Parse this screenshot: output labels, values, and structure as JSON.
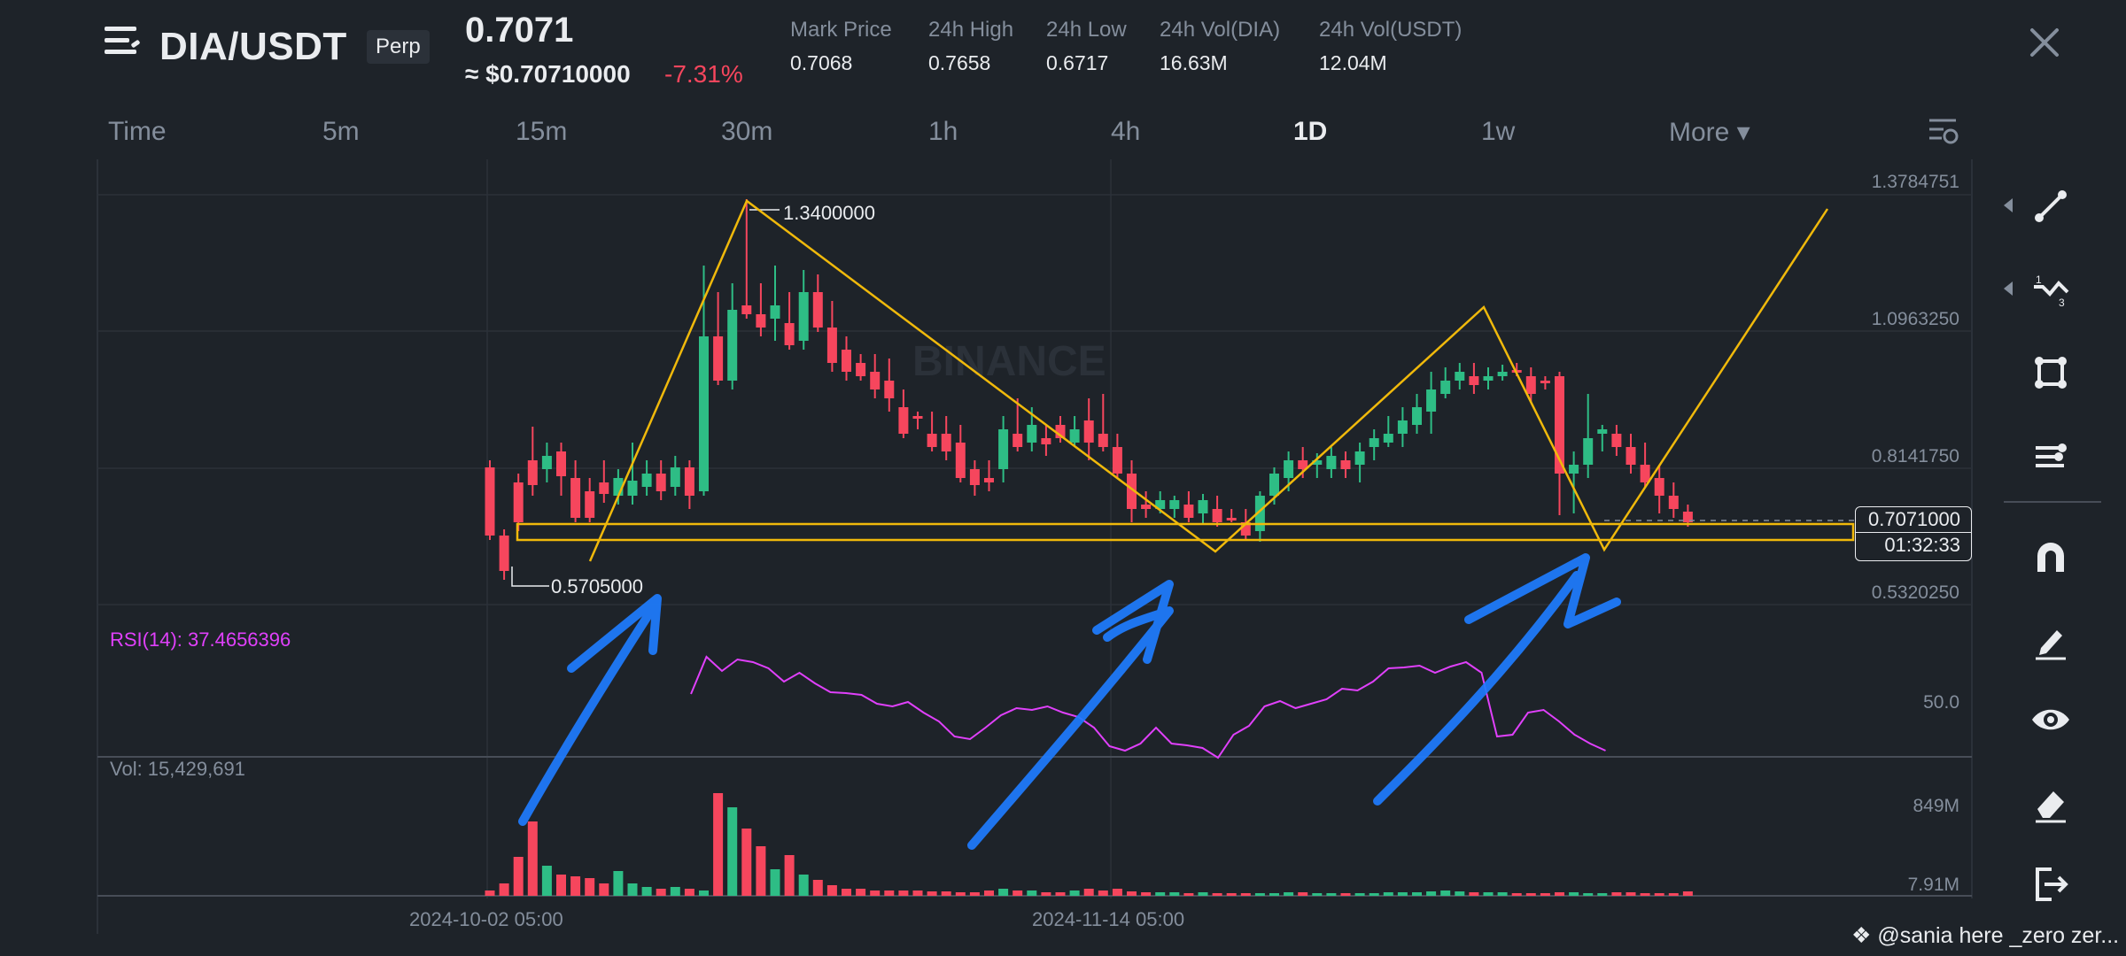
{
  "header": {
    "pair": "DIA/USDT",
    "contract_type": "Perp",
    "last_price": "0.7071",
    "usd_price": "≈ $0.70710000",
    "change": "-7.31%",
    "stats": [
      {
        "label": "Mark Price",
        "value": "0.7068"
      },
      {
        "label": "24h High",
        "value": "0.7658"
      },
      {
        "label": "24h Low",
        "value": "0.6717"
      },
      {
        "label": "24h Vol(DIA)",
        "value": "16.63M"
      },
      {
        "label": "24h Vol(USDT)",
        "value": "12.04M"
      }
    ]
  },
  "timeframes": {
    "items": [
      "Time",
      "5m",
      "15m",
      "30m",
      "1h",
      "4h",
      "1D",
      "1w",
      "More ▾"
    ],
    "active": "1D"
  },
  "chart": {
    "price_axis": [
      "1.3784751",
      "1.0963250",
      "0.8141750",
      "0.5320250"
    ],
    "high_marker": "1.3400000",
    "low_marker": "0.5705000",
    "current_price": "0.7071000",
    "countdown": "01:32:33",
    "watermark": "BINANCE",
    "rsi_label": "RSI(14): 37.4656396",
    "rsi_axis": "50.0",
    "vol_label": "Vol: 15,429,691",
    "vol_axis": [
      "849M",
      "7.91M"
    ],
    "dates": [
      "2024-10-02 05:00",
      "2024-11-14 05:00"
    ]
  },
  "tools": [
    "line-tool-icon",
    "fib-tool-icon",
    "rectangle-tool-icon",
    "indicator-tool-icon",
    "magnet-icon",
    "pencil-icon",
    "eye-icon",
    "eraser-icon",
    "exit-icon"
  ],
  "watermark_text": "@sania here _zero zer...",
  "colors": {
    "up": "#2ebd85",
    "down": "#f6465d",
    "drawing": "#f0b90b",
    "annotation": "#1e7cff",
    "rsi": "#e040fb"
  }
}
